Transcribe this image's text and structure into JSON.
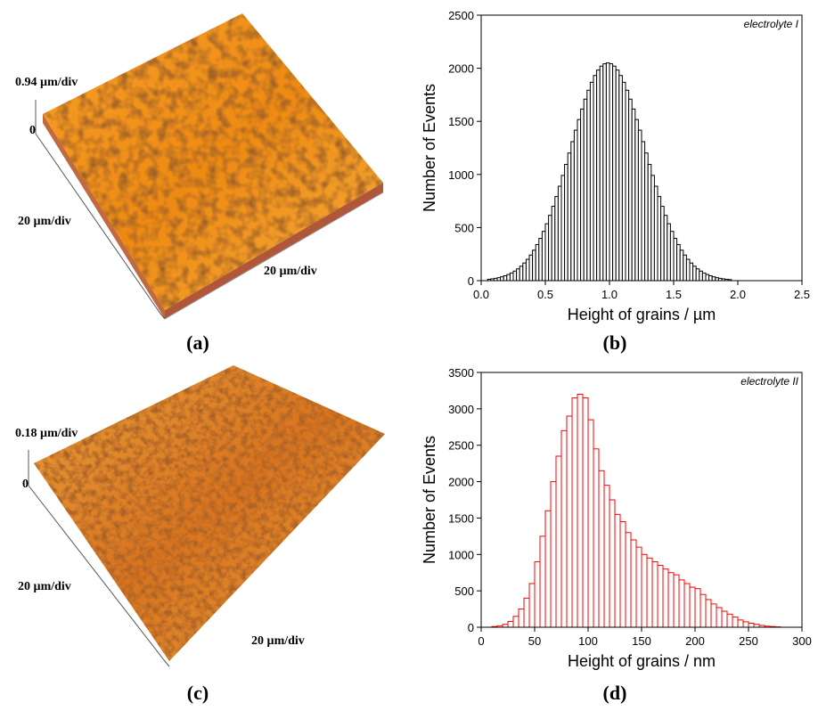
{
  "chart_data": [
    {
      "type": "histogram",
      "panel_label": "(b)",
      "annotation": "electrolyte I",
      "xlabel": "Height of grains / µm",
      "ylabel": "Number of Events",
      "bins": [
        0.05,
        0.075,
        0.1,
        0.125,
        0.15,
        0.175,
        0.2,
        0.225,
        0.25,
        0.275,
        0.3,
        0.325,
        0.35,
        0.375,
        0.4,
        0.425,
        0.45,
        0.475,
        0.5,
        0.525,
        0.55,
        0.575,
        0.6,
        0.625,
        0.65,
        0.675,
        0.7,
        0.725,
        0.75,
        0.775,
        0.8,
        0.825,
        0.85,
        0.875,
        0.9,
        0.925,
        0.95,
        0.975,
        1.0,
        1.025,
        1.05,
        1.075,
        1.1,
        1.125,
        1.15,
        1.175,
        1.2,
        1.225,
        1.25,
        1.275,
        1.3,
        1.325,
        1.35,
        1.375,
        1.4,
        1.425,
        1.45,
        1.475,
        1.5,
        1.525,
        1.55,
        1.575,
        1.6,
        1.625,
        1.65,
        1.675,
        1.7,
        1.725,
        1.75,
        1.775,
        1.8,
        1.825,
        1.85,
        1.875,
        1.9,
        1.925,
        1.95
      ],
      "values": [
        13,
        17,
        22,
        28,
        36,
        46,
        58,
        72,
        90,
        111,
        136,
        166,
        201,
        241,
        287,
        340,
        398,
        464,
        536,
        615,
        700,
        792,
        889,
        991,
        1095,
        1202,
        1309,
        1417,
        1517,
        1616,
        1709,
        1793,
        1868,
        1932,
        1983,
        2020,
        2042,
        2050,
        2042,
        2020,
        1983,
        1932,
        1868,
        1793,
        1709,
        1616,
        1517,
        1417,
        1309,
        1202,
        1095,
        991,
        889,
        792,
        700,
        615,
        536,
        464,
        398,
        340,
        287,
        241,
        201,
        166,
        136,
        111,
        90,
        72,
        58,
        46,
        36,
        28,
        22,
        17,
        13,
        10
      ],
      "color": "#000000",
      "xlim": [
        0,
        2.5
      ],
      "xticks": [
        {
          "value": 0,
          "label": "0.0"
        },
        0.5,
        {
          "value": 1,
          "label": "1.0"
        },
        1.5,
        {
          "value": 2,
          "label": "2.0"
        },
        2.5
      ],
      "ylim": [
        0,
        2500
      ],
      "yticks": [
        0,
        500,
        1000,
        1500,
        2000,
        2500
      ]
    },
    {
      "type": "histogram",
      "panel_label": "(d)",
      "annotation": "electrolyte II",
      "xlabel": "Height of grains / nm",
      "ylabel": "Number of Events",
      "bins": [
        10,
        15,
        20,
        25,
        30,
        35,
        40,
        45,
        50,
        55,
        60,
        65,
        70,
        75,
        80,
        85,
        90,
        95,
        100,
        105,
        110,
        115,
        120,
        125,
        130,
        135,
        140,
        145,
        150,
        155,
        160,
        165,
        170,
        175,
        180,
        185,
        190,
        195,
        200,
        205,
        210,
        215,
        220,
        225,
        230,
        235,
        240,
        245,
        250,
        255,
        260,
        265,
        270,
        275,
        280
      ],
      "values": [
        10,
        20,
        40,
        80,
        150,
        250,
        400,
        600,
        900,
        1250,
        1600,
        2000,
        2350,
        2700,
        2900,
        3150,
        3200,
        3150,
        2850,
        2450,
        2150,
        1950,
        1750,
        1550,
        1450,
        1300,
        1200,
        1100,
        1000,
        950,
        900,
        850,
        800,
        750,
        720,
        650,
        600,
        550,
        530,
        450,
        380,
        320,
        270,
        220,
        180,
        140,
        100,
        75,
        55,
        40,
        25,
        15,
        10,
        5
      ],
      "color": "#ff0000",
      "xlim": [
        0,
        300
      ],
      "xticks": [
        0,
        50,
        100,
        150,
        200,
        250,
        300
      ],
      "ylim": [
        0,
        3500
      ],
      "yticks": [
        0,
        500,
        1000,
        1500,
        2000,
        2500,
        3000,
        3500
      ]
    }
  ],
  "afm_images": [
    {
      "z_scale": "0.94 µm/div",
      "z_zero": "0",
      "y_scale": "20 µm/div",
      "x_scale": "20 µm/div",
      "panel_label": "(a)"
    },
    {
      "z_scale": "0.18 µm/div",
      "z_zero": "0",
      "y_scale": "20 µm/div",
      "x_scale": "20 µm/div",
      "panel_label": "(c)"
    }
  ]
}
